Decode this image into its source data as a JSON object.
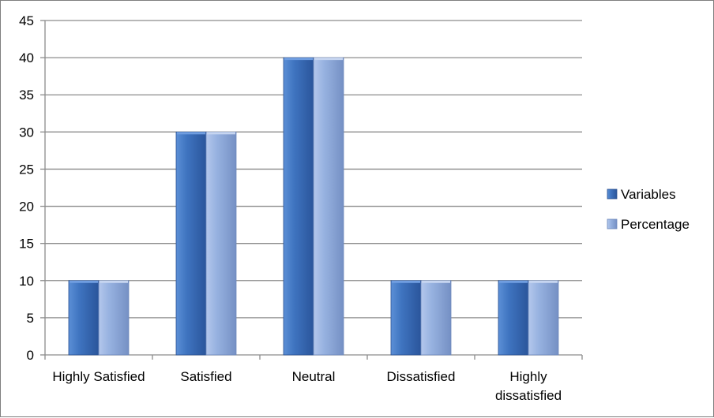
{
  "chart_data": {
    "type": "bar",
    "categories": [
      [
        "Highly Satisfied"
      ],
      [
        "Satisfied"
      ],
      [
        "Neutral"
      ],
      [
        "Dissatisfied"
      ],
      [
        "Highly",
        "dissatisfied"
      ]
    ],
    "series": [
      {
        "name": "Variables",
        "values": [
          10,
          30,
          40,
          10,
          10
        ],
        "color": "#3f6fb8"
      },
      {
        "name": "Percentage",
        "values": [
          10,
          30,
          40,
          10,
          10
        ],
        "color": "#93aede"
      }
    ],
    "ylim": [
      0,
      45
    ],
    "yticks": [
      0,
      5,
      10,
      15,
      20,
      25,
      30,
      35,
      40,
      45
    ],
    "grid": true,
    "legend_position": "right",
    "title": "",
    "xlabel": "",
    "ylabel": ""
  }
}
